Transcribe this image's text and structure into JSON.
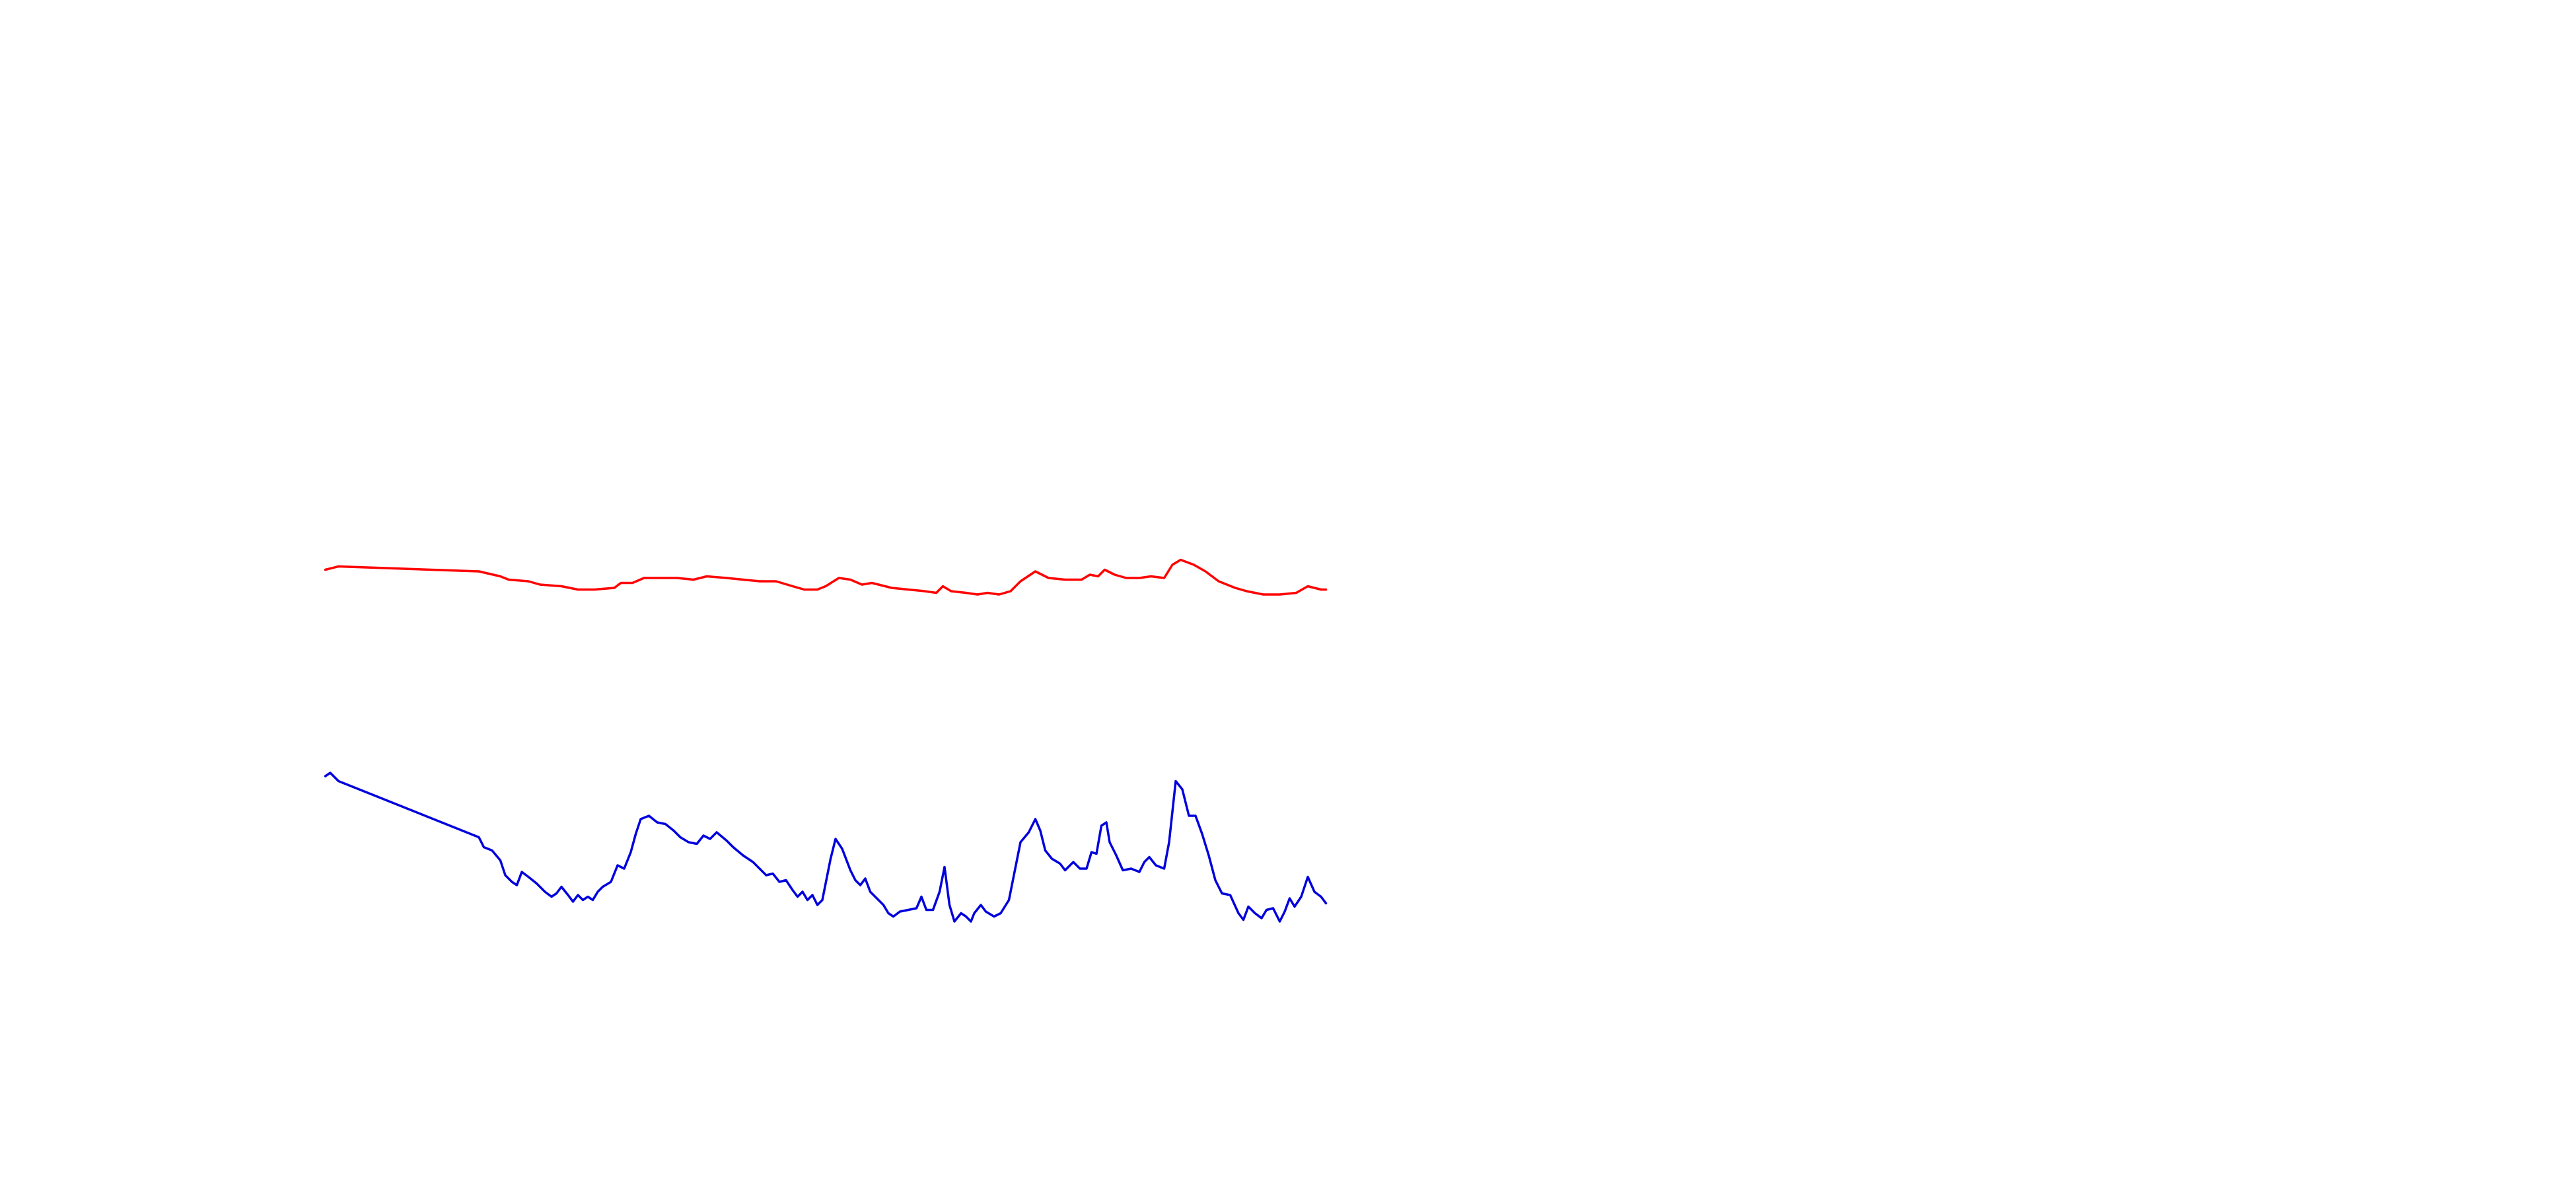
{
  "chart_data": {
    "type": "line",
    "series": [
      {
        "color": "#ff0000",
        "x": [
          0,
          8,
          93,
          106,
          111,
          123,
          130,
          143,
          153,
          163,
          175,
          179,
          186,
          193,
          203,
          213,
          223,
          231,
          243,
          253,
          263,
          273,
          283,
          290,
          298,
          303,
          311,
          318,
          325,
          331,
          343,
          353,
          363,
          370,
          374,
          379,
          388,
          395,
          401,
          408,
          415,
          421,
          430,
          438,
          448,
          458,
          463,
          468,
          472,
          478,
          485,
          493,
          500,
          508,
          513,
          518,
          526,
          533,
          541,
          551,
          558,
          568,
          578,
          588,
          595,
          603,
          606
        ],
        "values": [
          355,
          357,
          354,
          351,
          349,
          348,
          346,
          345,
          343,
          343,
          344,
          347,
          347,
          350,
          350,
          350,
          349,
          351,
          350,
          349,
          348,
          348,
          345,
          343,
          343,
          345,
          350,
          349,
          346,
          347,
          344,
          343,
          342,
          341,
          345,
          342,
          341,
          340,
          341,
          340,
          342,
          348,
          354,
          350,
          349,
          349,
          352,
          351,
          355,
          352,
          350,
          350,
          351,
          350,
          358,
          361,
          358,
          354,
          348,
          344,
          342,
          340,
          340,
          341,
          345,
          343,
          343
        ]
      },
      {
        "color": "#0000dd",
        "x": [
          0,
          3,
          8,
          93,
          96,
          101,
          106,
          109,
          113,
          116,
          119,
          123,
          128,
          133,
          137,
          140,
          143,
          147,
          150,
          153,
          156,
          159,
          162,
          165,
          168,
          173,
          177,
          181,
          185,
          188,
          191,
          196,
          201,
          206,
          211,
          215,
          220,
          225,
          229,
          233,
          237,
          243,
          247,
          253,
          259,
          263,
          267,
          271,
          275,
          279,
          283,
          286,
          289,
          292,
          295,
          298,
          301,
          303,
          306,
          309,
          313,
          318,
          321,
          324,
          327,
          330,
          333,
          338,
          341,
          344,
          348,
          353,
          358,
          361,
          364,
          368,
          372,
          375,
          378,
          381,
          385,
          388,
          391,
          393,
          397,
          400,
          405,
          409,
          414,
          417,
          421,
          426,
          430,
          433,
          436,
          440,
          445,
          448,
          453,
          457,
          461,
          464,
          467,
          470,
          473,
          475,
          479,
          483,
          488,
          493,
          496,
          499,
          503,
          508,
          511,
          515,
          519,
          523,
          527,
          531,
          535,
          539,
          543,
          548,
          553,
          556,
          559,
          563,
          567,
          570,
          574,
          578,
          581,
          584,
          587,
          591,
          595,
          599,
          603,
          606
        ],
        "values": [
          230,
          232,
          227,
          193,
          187,
          185,
          179,
          170,
          166,
          164,
          172,
          169,
          165,
          160,
          157,
          159,
          163,
          158,
          154,
          158,
          155,
          157,
          155,
          160,
          163,
          166,
          176,
          174,
          184,
          195,
          204,
          206,
          202,
          201,
          197,
          193,
          190,
          189,
          194,
          192,
          196,
          191,
          187,
          182,
          178,
          174,
          170,
          171,
          166,
          167,
          161,
          157,
          160,
          155,
          158,
          152,
          155,
          165,
          180,
          192,
          186,
          173,
          167,
          164,
          168,
          160,
          157,
          152,
          147,
          145,
          148,
          149,
          150,
          157,
          149,
          149,
          160,
          175,
          152,
          142,
          147,
          145,
          142,
          147,
          152,
          148,
          145,
          147,
          155,
          170,
          190,
          196,
          204,
          197,
          185,
          180,
          177,
          173,
          178,
          174,
          174,
          184,
          183,
          200,
          202,
          190,
          182,
          173,
          174,
          172,
          178,
          181,
          176,
          174,
          190,
          227,
          222,
          206,
          206,
          195,
          182,
          167,
          159,
          158,
          147,
          143,
          151,
          147,
          144,
          149,
          150,
          142,
          148,
          156,
          151,
          157,
          169,
          160,
          157,
          153
        ]
      }
    ]
  }
}
